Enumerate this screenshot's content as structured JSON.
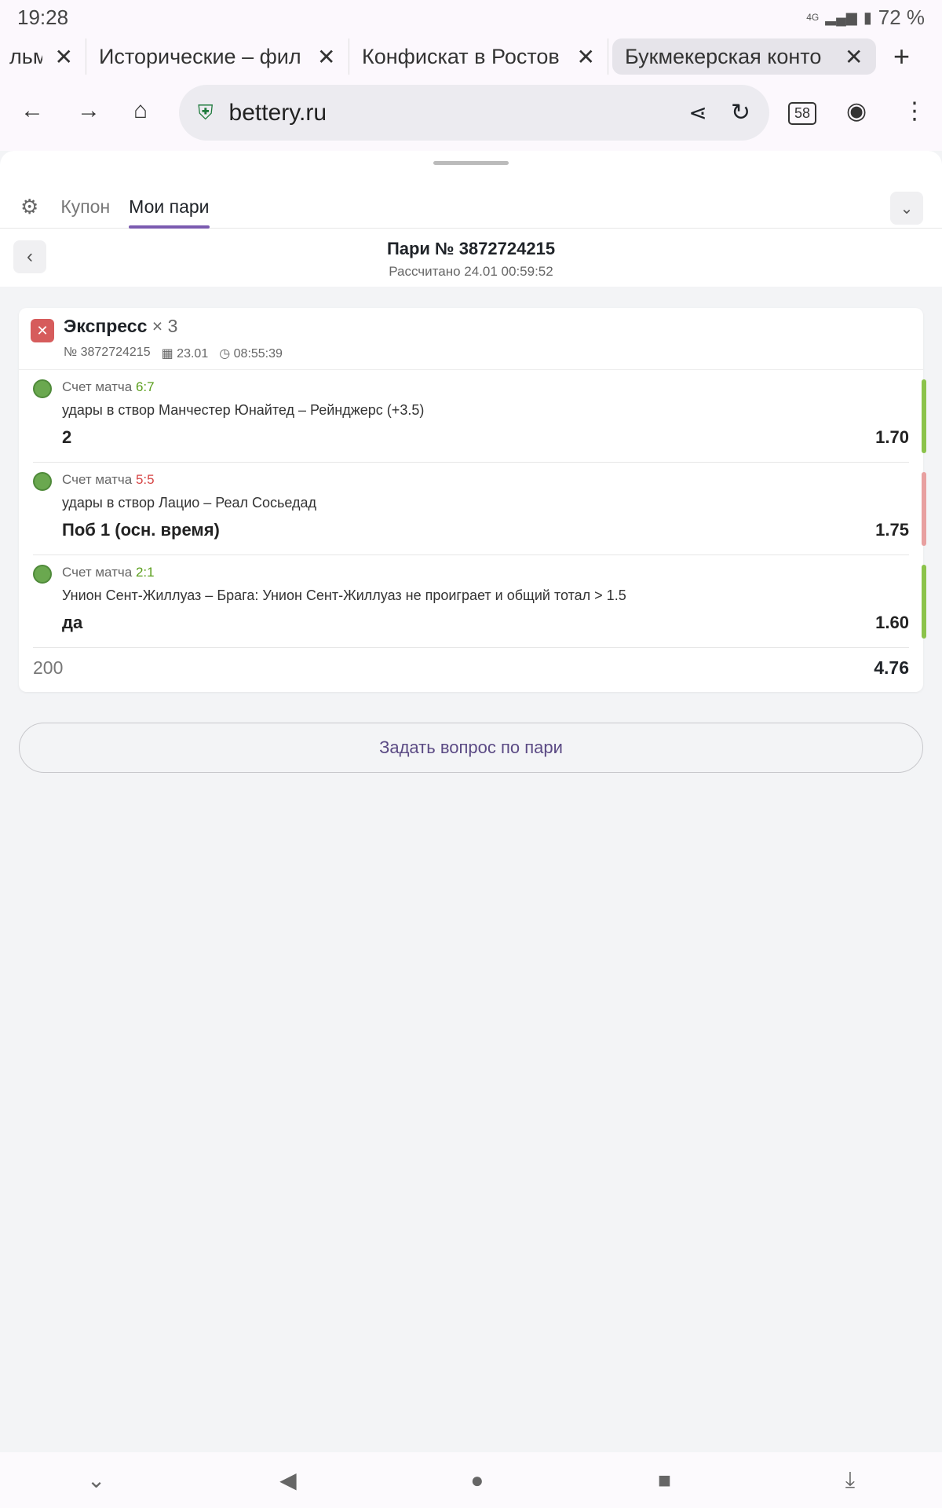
{
  "status": {
    "time": "19:28",
    "network": "4G",
    "battery": "72 %"
  },
  "browser": {
    "tabs": [
      {
        "title": "льм",
        "active": false
      },
      {
        "title": "Исторические – фил",
        "active": false
      },
      {
        "title": "Конфискат в Ростов",
        "active": false
      },
      {
        "title": "Букмекерская конто",
        "active": true
      }
    ],
    "url": "bettery.ru",
    "tab_count": "58"
  },
  "panel": {
    "tabs": [
      {
        "label": "Купон"
      },
      {
        "label": "Мои пари",
        "active": true
      }
    ],
    "title": "Пари № 3872724215",
    "subtitle": "Рассчитано 24.01 00:59:52"
  },
  "bet": {
    "type": "Экспресс",
    "multiplier": "× 3",
    "number": "№ 3872724215",
    "date": "23.01",
    "time": "08:55:39",
    "status_color": "#d65c5c",
    "selections": [
      {
        "score_label": "Счет матча",
        "score": "6:7",
        "score_color": "#5a9e1c",
        "market": "удары в створ Манчестер Юнайтед – Рейнджерс (+3.5)",
        "pick": "2",
        "odd": "1.70",
        "result_color": "#8bc34a"
      },
      {
        "score_label": "Счет матча",
        "score": "5:5",
        "score_color": "#d64545",
        "market": "удары в створ Лацио – Реал Сосьедад",
        "pick": "Поб 1 (осн. время)",
        "odd": "1.75",
        "result_color": "#e8a0a0"
      },
      {
        "score_label": "Счет матча",
        "score": "2:1",
        "score_color": "#5a9e1c",
        "market": "Унион Сент-Жиллуаз – Брага: Унион Сент-Жиллуаз не проиграет и общий тотал > 1.5",
        "pick": "да",
        "odd": "1.60",
        "result_color": "#8bc34a"
      }
    ],
    "stake": "200",
    "total_odd": "4.76"
  },
  "ask_button": "Задать вопрос по пари"
}
